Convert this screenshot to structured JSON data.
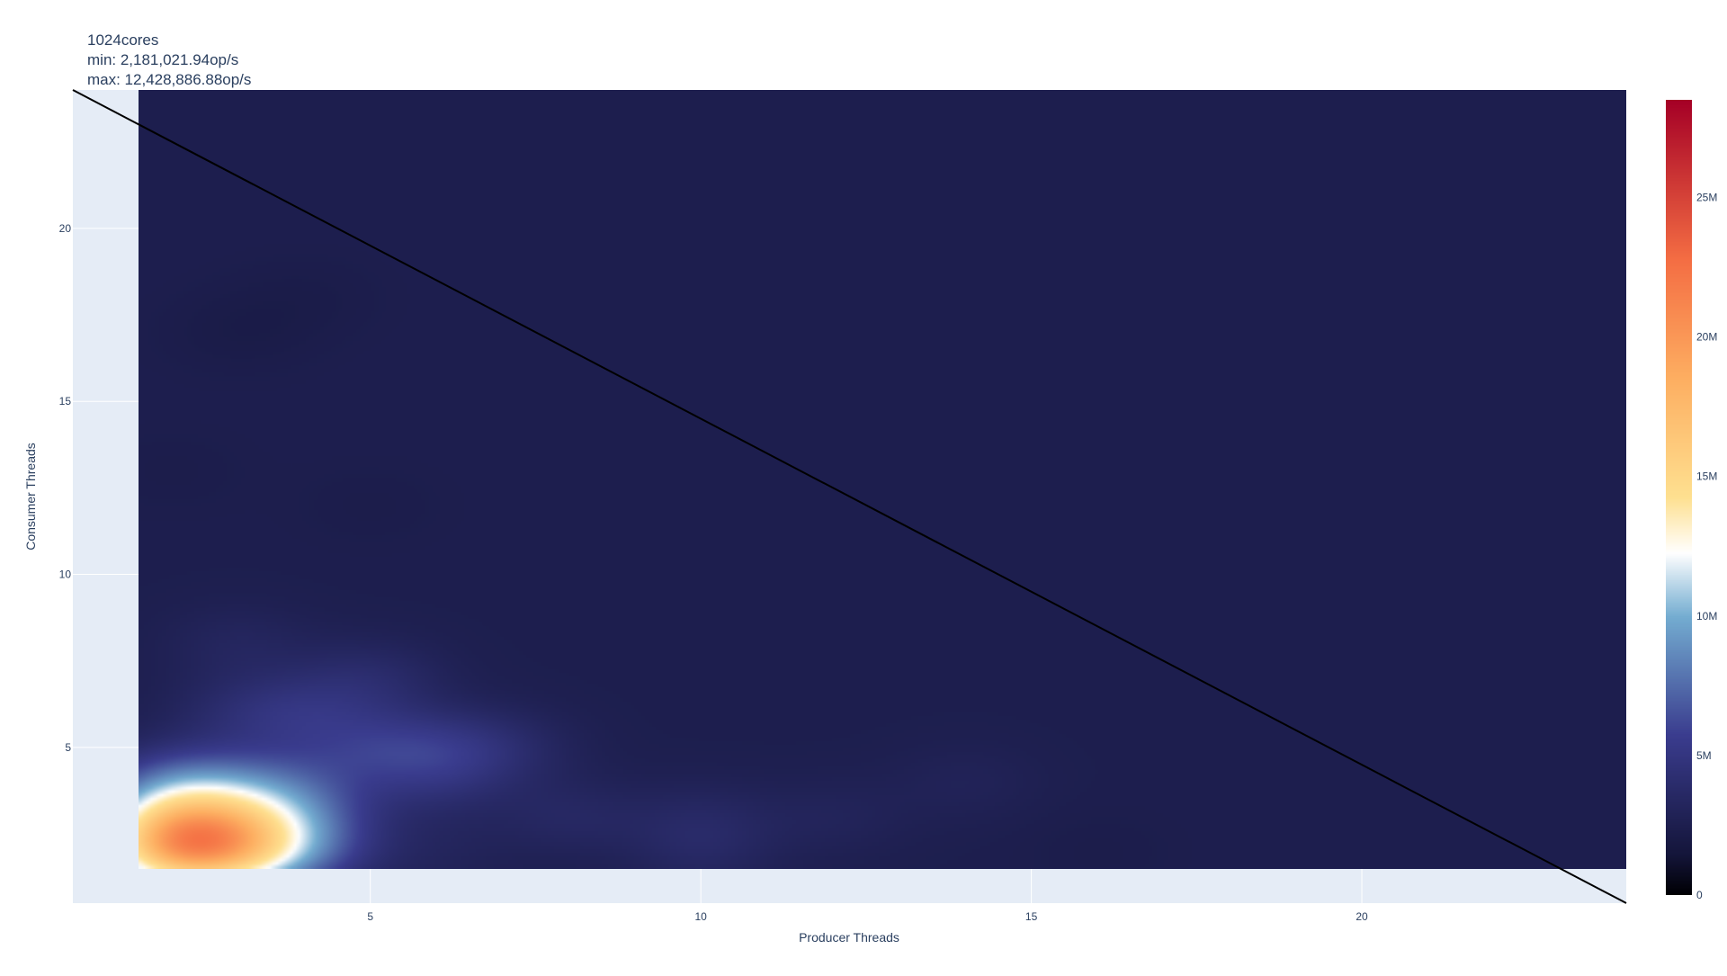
{
  "chart_data": {
    "type": "heatmap",
    "title_lines": [
      "1024cores",
      "min: 2,181,021.94op/s",
      "max: 12,428,886.88op/s"
    ],
    "xlabel": "Producer Threads",
    "ylabel": "Consumer Threads",
    "xlim": [
      0.5,
      24
    ],
    "ylim": [
      0.5,
      24
    ],
    "x_ticks": [
      5,
      10,
      15,
      20
    ],
    "y_ticks": [
      5,
      10,
      15,
      20
    ],
    "x_range": [
      1.5,
      24
    ],
    "y_range": [
      1.5,
      24
    ],
    "grid": true,
    "colorscale": "RdYlBu_r",
    "colorbar": {
      "range": [
        0,
        28500000
      ],
      "ticks": [
        0,
        5000000,
        10000000,
        15000000,
        20000000,
        25000000
      ],
      "tick_labels": [
        "0",
        "5M",
        "10M",
        "15M",
        "20M",
        "25M"
      ]
    },
    "colorscale_stops": [
      [
        0.0,
        "#000004"
      ],
      [
        0.05,
        "#14153a"
      ],
      [
        0.2,
        "#3a3c8e"
      ],
      [
        0.35,
        "#74add1"
      ],
      [
        0.43,
        "#ffffff"
      ],
      [
        0.5,
        "#fee090"
      ],
      [
        0.65,
        "#fdae61"
      ],
      [
        0.8,
        "#f46d43"
      ],
      [
        1.0,
        "#a50026"
      ]
    ],
    "base_value": 2450000,
    "hotspots": [
      {
        "x": 2,
        "y": 2,
        "value": 12428886.88
      },
      {
        "x": 3,
        "y": 2,
        "value": 9600000
      },
      {
        "x": 2,
        "y": 3,
        "value": 8300000
      },
      {
        "x": 3,
        "y": 3,
        "value": 6300000
      },
      {
        "x": 4,
        "y": 2,
        "value": 4800000
      },
      {
        "x": 2,
        "y": 4,
        "value": 5000000
      },
      {
        "x": 4,
        "y": 3,
        "value": 4500000
      },
      {
        "x": 3,
        "y": 4,
        "value": 4300000
      },
      {
        "x": 4,
        "y": 4,
        "value": 4000000
      },
      {
        "x": 5,
        "y": 5,
        "value": 4100000
      },
      {
        "x": 4,
        "y": 6,
        "value": 4000000
      },
      {
        "x": 6,
        "y": 5,
        "value": 4000000
      },
      {
        "x": 5,
        "y": 7,
        "value": 3700000
      },
      {
        "x": 6,
        "y": 4,
        "value": 3600000
      },
      {
        "x": 7,
        "y": 5,
        "value": 3500000
      },
      {
        "x": 3,
        "y": 6,
        "value": 3500000
      },
      {
        "x": 8,
        "y": 3,
        "value": 3400000
      },
      {
        "x": 10,
        "y": 3,
        "value": 3200000
      },
      {
        "x": 3,
        "y": 8,
        "value": 3200000
      },
      {
        "x": 6,
        "y": 2,
        "value": 3000000
      },
      {
        "x": 10,
        "y": 2,
        "value": 3300000
      },
      {
        "x": 12,
        "y": 3,
        "value": 3000000
      },
      {
        "x": 14,
        "y": 4,
        "value": 2900000
      },
      {
        "x": 3,
        "y": 17,
        "value": 2181021.94
      },
      {
        "x": 4,
        "y": 18,
        "value": 2250000
      },
      {
        "x": 2,
        "y": 13,
        "value": 2300000
      },
      {
        "x": 16,
        "y": 2,
        "value": 2300000
      },
      {
        "x": 5,
        "y": 12,
        "value": 2300000
      }
    ],
    "reference_line": {
      "x": [
        0.5,
        24
      ],
      "y": [
        24,
        0.5
      ],
      "color": "#000000"
    }
  },
  "colors": {
    "plot_bg": "#e5ecf6",
    "grid": "#ffffff",
    "tick_text": "#2a3f5f",
    "line": "#000000"
  }
}
